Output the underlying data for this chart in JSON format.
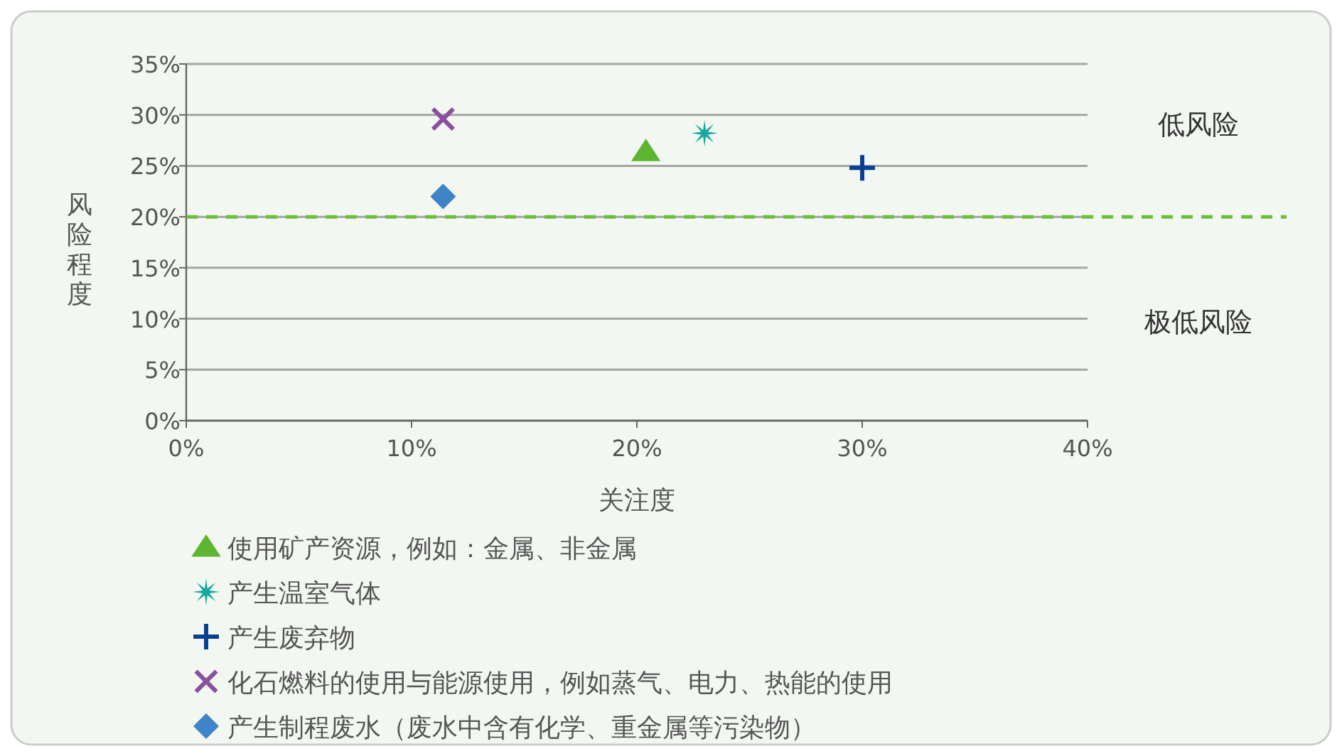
{
  "chart_data": {
    "type": "scatter",
    "xlabel": "关注度",
    "ylabel": "风险程度",
    "xlim": [
      0,
      40
    ],
    "xticks": [
      {
        "value": 0,
        "label": "0%"
      },
      {
        "value": 10,
        "label": "10%"
      },
      {
        "value": 20,
        "label": "20%"
      },
      {
        "value": 30,
        "label": "30%"
      },
      {
        "value": 40,
        "label": "40%"
      }
    ],
    "ylim": [
      0,
      35
    ],
    "yticks": [
      {
        "value": 0,
        "label": "0%"
      },
      {
        "value": 5,
        "label": "5%"
      },
      {
        "value": 10,
        "label": "10%"
      },
      {
        "value": 15,
        "label": "15%"
      },
      {
        "value": 20,
        "label": "20%"
      },
      {
        "value": 25,
        "label": "25%"
      },
      {
        "value": 30,
        "label": "30%"
      },
      {
        "value": 35,
        "label": "35%"
      }
    ],
    "grid": "y",
    "legend": "bottom",
    "ref_lines": [
      {
        "axis": "y",
        "value": 20,
        "color": "#6bbf3a",
        "line_style": "dashed"
      }
    ],
    "annotations": [
      "低风险",
      "极低风险"
    ],
    "series": [
      {
        "name": "使用矿产资源，例如：金属、非金属",
        "color": "#5db531",
        "marker": "triangle",
        "x": [
          20.4
        ],
        "values": [
          26.4
        ]
      },
      {
        "name": "产生温室气体",
        "color": "#14a8a0",
        "marker": "star",
        "x": [
          23.0
        ],
        "values": [
          28.2
        ]
      },
      {
        "name": "产生废弃物",
        "color": "#0c3f92",
        "marker": "plus",
        "x": [
          30.0
        ],
        "values": [
          24.8
        ]
      },
      {
        "name": "化石燃料的使用与能源使用，例如蒸气、电力、热能的使用",
        "color": "#8a4f9e",
        "marker": "cross",
        "x": [
          11.4
        ],
        "values": [
          29.6
        ]
      },
      {
        "name": "产生制程废水（废水中含有化学、重金属等污染物）",
        "color": "#3f83c8",
        "marker": "diamond",
        "x": [
          11.4
        ],
        "values": [
          22.0
        ]
      }
    ]
  }
}
